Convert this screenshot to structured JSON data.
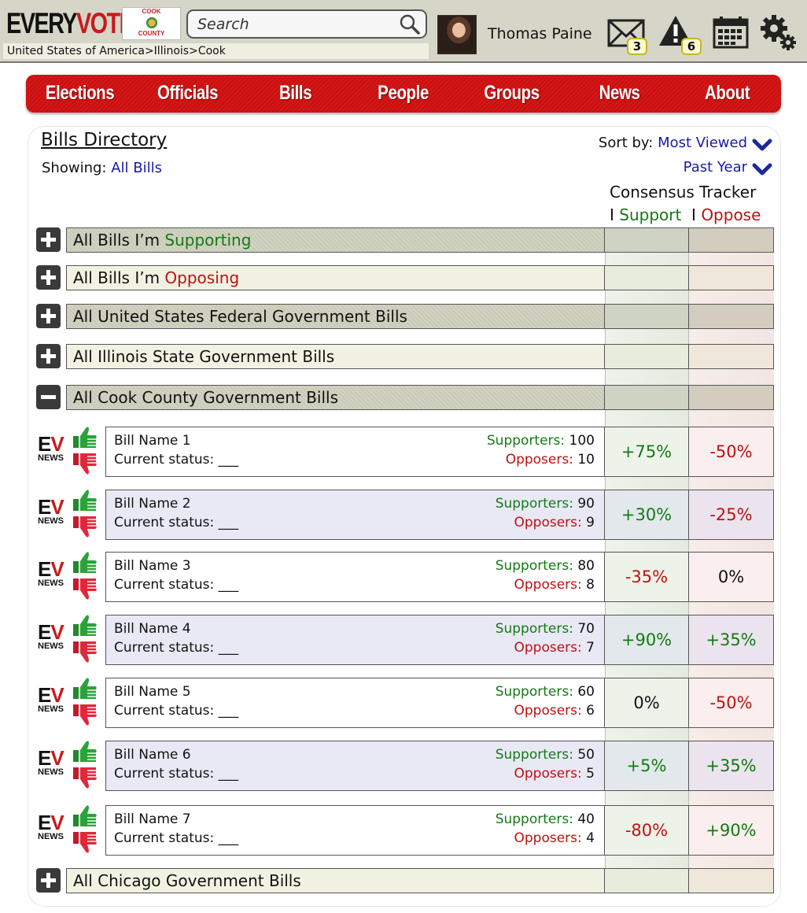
{
  "header": {
    "logo_every": "EVERY",
    "logo_vote": "VOTE",
    "county_logo_top": "COOK",
    "county_logo_bottom": "COUNTY",
    "search_placeholder": "Search",
    "breadcrumb": "United States of America>Illinois>Cook",
    "username": "Thomas Paine",
    "messages_count": "3",
    "alerts_count": "6",
    "icons": [
      "search-icon",
      "mail-icon",
      "alert-icon",
      "calendar-icon",
      "gear-icon"
    ]
  },
  "nav": {
    "items": [
      "Elections",
      "Officials",
      "Bills",
      "People",
      "Groups",
      "News",
      "About"
    ],
    "active": "Bills"
  },
  "main": {
    "title": "Bills Directory",
    "showing_label": "Showing:",
    "showing_value": "All Bills",
    "sort_label": "Sort by:",
    "sort_value": "Most Viewed",
    "timeframe_value": "Past Year",
    "tracker_title": "Consensus Tracker",
    "tracker_support": "Support",
    "tracker_oppose": "Oppose"
  },
  "groups": {
    "supporting_prefix": "All Bills I’m ",
    "supporting_word": "Supporting",
    "opposing_prefix": "All Bills I’m ",
    "opposing_word": "Opposing",
    "federal": "All United States Federal Government Bills",
    "state": "All Illinois State Government Bills",
    "county": "All Cook County Government Bills",
    "city": "All Chicago Government Bills"
  },
  "bill_labels": {
    "status_label": "Current status: ___",
    "supporters_label": "Supporters:",
    "opposers_label": "Opposers:",
    "ev_e": "E",
    "ev_v": "V",
    "ev_news": "NEWS"
  },
  "bills": [
    {
      "name": "Bill Name 1",
      "supporters": "100",
      "opposers": "10",
      "support": "+75%",
      "oppose": "-50%"
    },
    {
      "name": "Bill Name 2",
      "supporters": "90",
      "opposers": "9",
      "support": "+30%",
      "oppose": "-25%"
    },
    {
      "name": "Bill Name 3",
      "supporters": "80",
      "opposers": "8",
      "support": "-35%",
      "oppose": "0%"
    },
    {
      "name": "Bill Name 4",
      "supporters": "70",
      "opposers": "7",
      "support": "+90%",
      "oppose": "+35%"
    },
    {
      "name": "Bill Name 5",
      "supporters": "60",
      "opposers": "6",
      "support": "0%",
      "oppose": "-50%"
    },
    {
      "name": "Bill Name 6",
      "supporters": "50",
      "opposers": "5",
      "support": "+5%",
      "oppose": "+35%"
    },
    {
      "name": "Bill Name 7",
      "supporters": "40",
      "opposers": "4",
      "support": "-80%",
      "oppose": "+90%"
    }
  ],
  "colors": {
    "brand_red": "#c81a1a",
    "support_green": "#137a13",
    "oppose_red": "#c01010",
    "link_blue": "#1a1aa8"
  }
}
